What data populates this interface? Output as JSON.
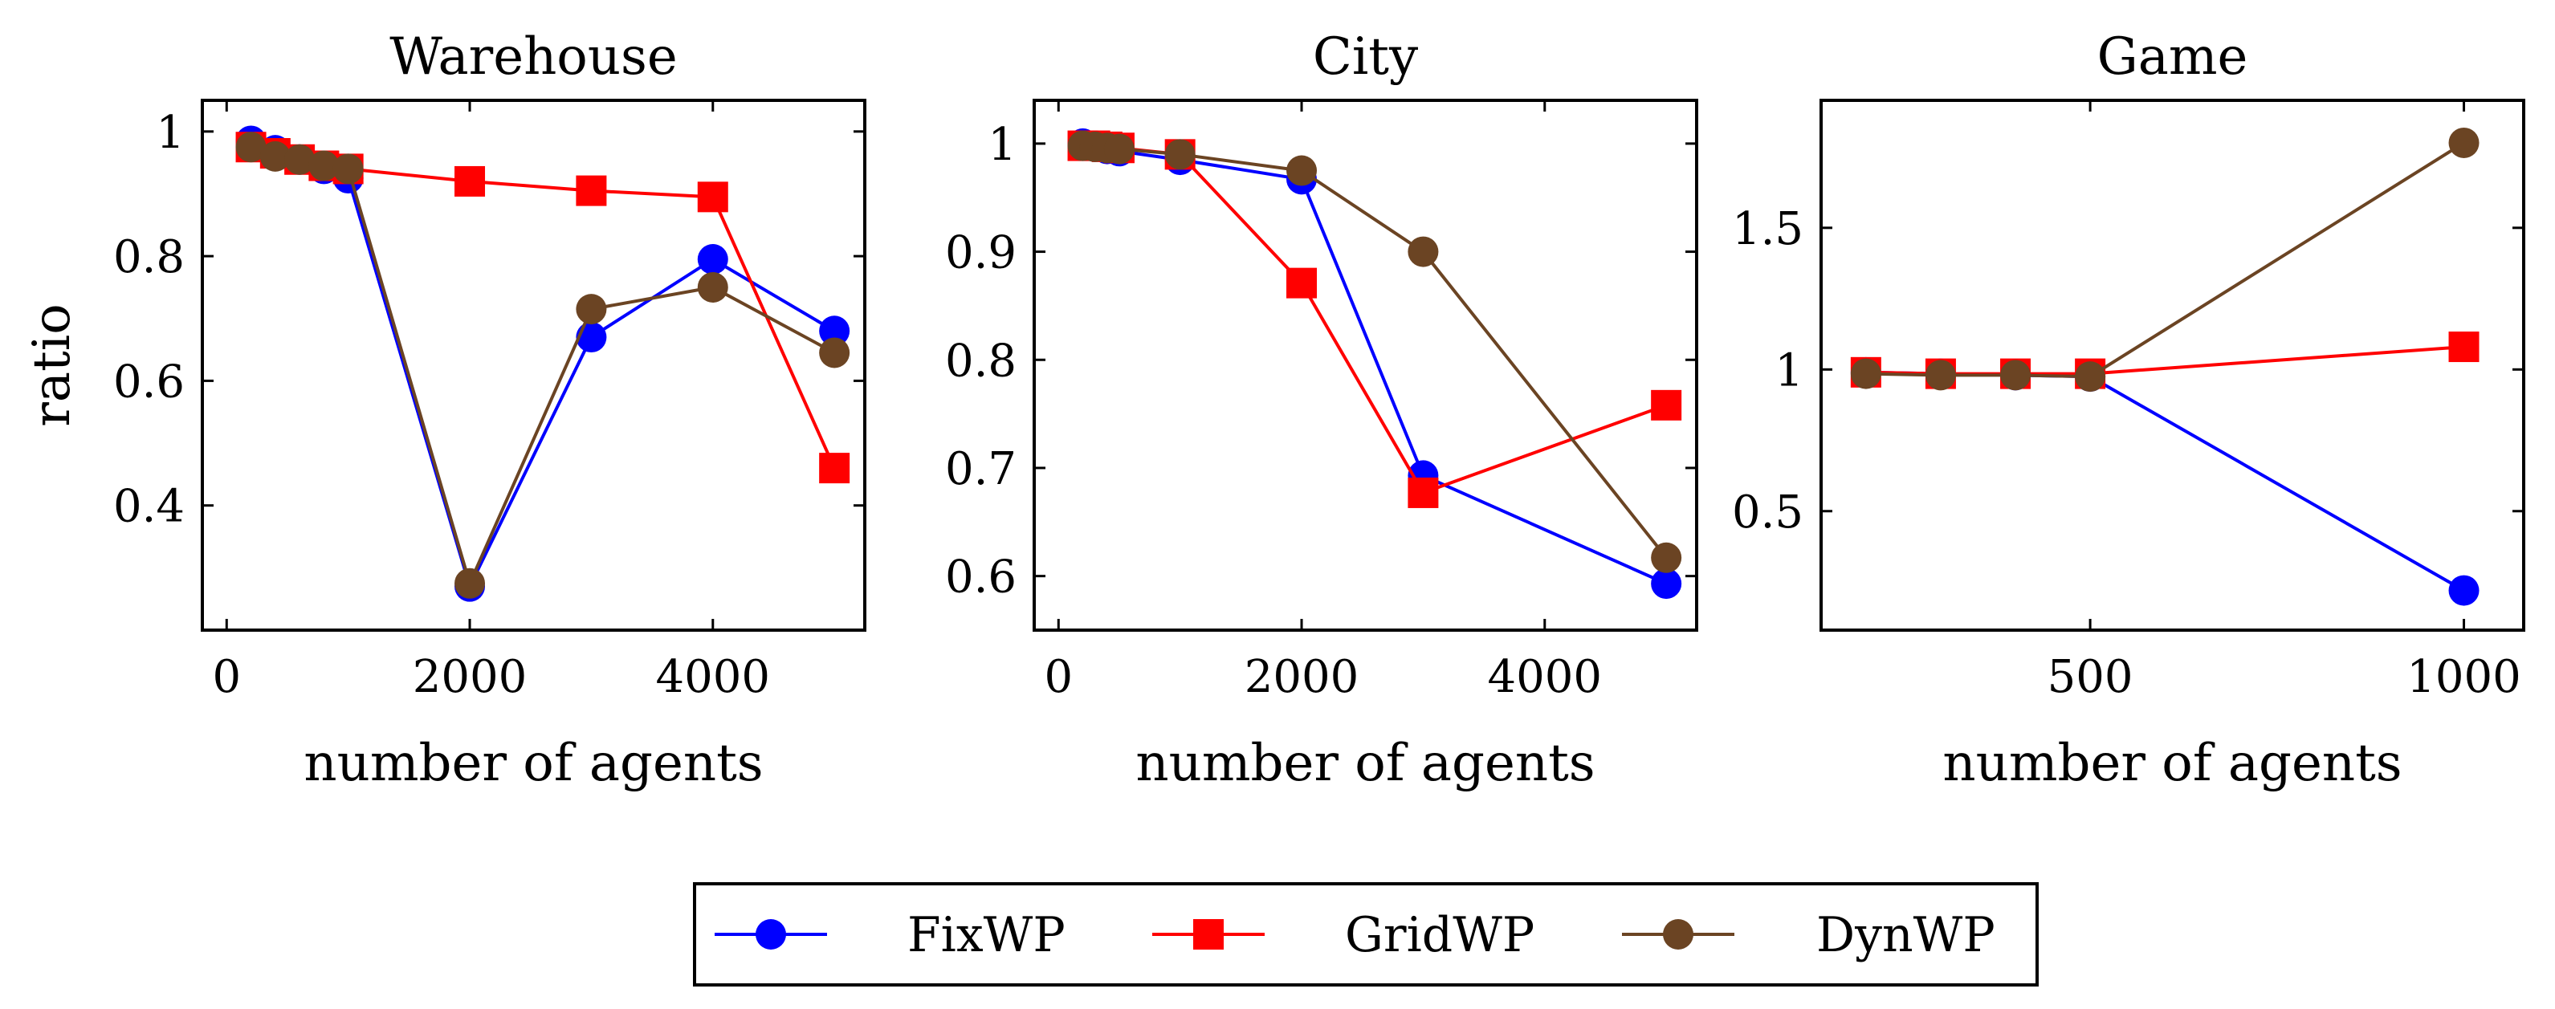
{
  "legend": {
    "entries": [
      {
        "label": "FixWP",
        "color": "#0000ff",
        "marker": "circle"
      },
      {
        "label": "GridWP",
        "color": "#ff0000",
        "marker": "square"
      },
      {
        "label": "DynWP",
        "color": "#6b4423",
        "marker": "circle"
      }
    ],
    "label_color": "#1f77b4",
    "placement": "bottom-center"
  },
  "chart_data": [
    {
      "type": "line",
      "title": "Warehouse",
      "xlabel": "number of agents",
      "ylabel": "ratio",
      "xlim": [
        -200,
        5250
      ],
      "ylim": [
        0.2,
        1.05
      ],
      "xticks": [
        0,
        2000,
        4000
      ],
      "xtick_labels": [
        "0",
        "2000",
        "4000"
      ],
      "yticks": [
        0.4,
        0.6,
        0.8,
        1.0
      ],
      "ytick_labels": [
        "0.4",
        "0.6",
        "0.8",
        "1"
      ],
      "grid": false,
      "series": [
        {
          "name": "FixWP",
          "color": "#0000ff",
          "marker": "circle",
          "x": [
            200,
            400,
            600,
            800,
            1000,
            2000,
            3000,
            4000,
            5000
          ],
          "y": [
            0.985,
            0.97,
            0.955,
            0.94,
            0.925,
            0.27,
            0.67,
            0.795,
            0.68
          ]
        },
        {
          "name": "GridWP",
          "color": "#ff0000",
          "marker": "square",
          "x": [
            200,
            400,
            600,
            800,
            1000,
            2000,
            3000,
            4000,
            5000
          ],
          "y": [
            0.975,
            0.965,
            0.955,
            0.945,
            0.94,
            0.92,
            0.905,
            0.895,
            0.46
          ]
        },
        {
          "name": "DynWP",
          "color": "#6b4423",
          "marker": "circle",
          "x": [
            200,
            400,
            600,
            800,
            1000,
            2000,
            3000,
            4000,
            5000
          ],
          "y": [
            0.975,
            0.96,
            0.955,
            0.945,
            0.94,
            0.275,
            0.715,
            0.75,
            0.645
          ]
        }
      ]
    },
    {
      "type": "line",
      "title": "City",
      "xlabel": "number of agents",
      "ylabel": "",
      "xlim": [
        -200,
        5250
      ],
      "ylim": [
        0.55,
        1.04
      ],
      "xticks": [
        0,
        2000,
        4000
      ],
      "xtick_labels": [
        "0",
        "2000",
        "4000"
      ],
      "yticks": [
        0.6,
        0.7,
        0.8,
        0.9,
        1.0
      ],
      "ytick_labels": [
        "0.6",
        "0.7",
        "0.8",
        "0.9",
        "1"
      ],
      "grid": false,
      "series": [
        {
          "name": "FixWP",
          "color": "#0000ff",
          "marker": "circle",
          "x": [
            200,
            300,
            400,
            500,
            1000,
            2000,
            3000,
            5000
          ],
          "y": [
            1.0,
            0.998,
            0.995,
            0.993,
            0.985,
            0.967,
            0.693,
            0.593
          ]
        },
        {
          "name": "GridWP",
          "color": "#ff0000",
          "marker": "square",
          "x": [
            200,
            300,
            400,
            500,
            1000,
            2000,
            3000,
            5000
          ],
          "y": [
            0.998,
            0.998,
            0.997,
            0.996,
            0.99,
            0.871,
            0.677,
            0.758
          ]
        },
        {
          "name": "DynWP",
          "color": "#6b4423",
          "marker": "circle",
          "x": [
            200,
            300,
            400,
            500,
            1000,
            2000,
            3000,
            5000
          ],
          "y": [
            0.998,
            0.997,
            0.996,
            0.995,
            0.99,
            0.975,
            0.9,
            0.617
          ]
        }
      ]
    },
    {
      "type": "line",
      "title": "Game",
      "xlabel": "number of agents",
      "ylabel": "",
      "xlim": [
        140,
        1080
      ],
      "ylim": [
        0.08,
        1.95
      ],
      "xticks": [
        500,
        1000
      ],
      "xtick_labels": [
        "500",
        "1000"
      ],
      "yticks": [
        0.5,
        1.0,
        1.5
      ],
      "ytick_labels": [
        "0.5",
        "1",
        "1.5"
      ],
      "grid": false,
      "series": [
        {
          "name": "FixWP",
          "color": "#0000ff",
          "marker": "circle",
          "x": [
            200,
            300,
            400,
            500,
            1000
          ],
          "y": [
            0.99,
            0.985,
            0.98,
            0.975,
            0.22
          ]
        },
        {
          "name": "GridWP",
          "color": "#ff0000",
          "marker": "square",
          "x": [
            200,
            300,
            400,
            500,
            1000
          ],
          "y": [
            0.99,
            0.985,
            0.985,
            0.985,
            1.08
          ]
        },
        {
          "name": "DynWP",
          "color": "#6b4423",
          "marker": "circle",
          "x": [
            200,
            300,
            400,
            500,
            1000
          ],
          "y": [
            0.985,
            0.98,
            0.98,
            0.975,
            1.8
          ]
        }
      ]
    }
  ]
}
